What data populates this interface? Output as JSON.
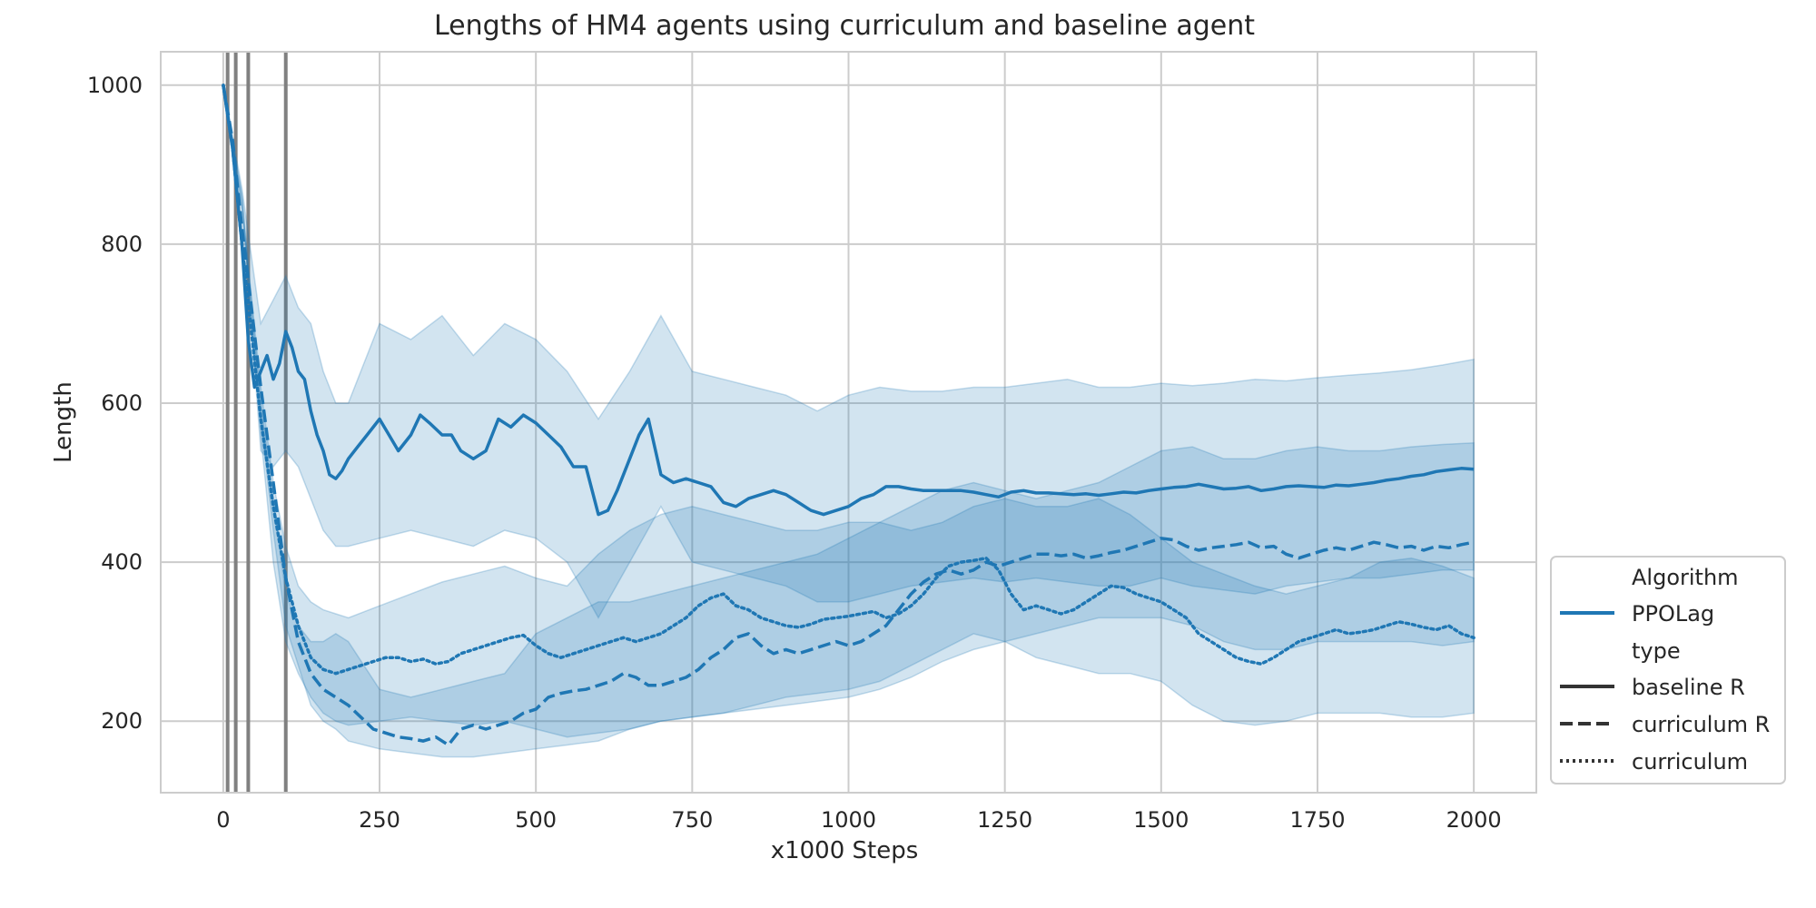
{
  "chart_data": {
    "type": "line",
    "title": "Lengths of HM4 agents using curriculum and baseline agent",
    "xlabel": "x1000 Steps",
    "ylabel": "Length",
    "xlim": [
      -100,
      2100
    ],
    "ylim": [
      110,
      1042
    ],
    "xticks": [
      0,
      250,
      500,
      750,
      1000,
      1250,
      1500,
      1750,
      2000
    ],
    "yticks": [
      200,
      400,
      600,
      800,
      1000
    ],
    "grid": true,
    "vertical_markers": [
      7,
      20,
      40,
      100
    ],
    "colors": {
      "series": "#1f77b4",
      "band": "#1f77b4",
      "marker": "#808080",
      "grid": "#cccccc",
      "legend_sample": "#333333"
    },
    "legend": {
      "placement": "outside-bottom-right",
      "hue_title": "Algorithm",
      "hue_items": [
        "PPOLag"
      ],
      "style_title": "type",
      "style_items": [
        "baseline R",
        "curriculum R",
        "curriculum"
      ]
    },
    "series": [
      {
        "name": "baseline R",
        "algorithm": "PPOLag",
        "dash": "solid",
        "x": [
          0,
          15,
          30,
          40,
          50,
          60,
          70,
          80,
          90,
          100,
          110,
          120,
          130,
          140,
          150,
          160,
          170,
          180,
          190,
          200,
          215,
          230,
          250,
          265,
          280,
          300,
          315,
          330,
          350,
          365,
          380,
          400,
          420,
          440,
          460,
          480,
          500,
          520,
          540,
          560,
          580,
          600,
          615,
          630,
          650,
          665,
          680,
          690,
          700,
          720,
          740,
          760,
          780,
          800,
          820,
          840,
          860,
          880,
          900,
          920,
          940,
          960,
          980,
          1000,
          1020,
          1040,
          1060,
          1080,
          1100,
          1120,
          1140,
          1160,
          1180,
          1200,
          1220,
          1240,
          1260,
          1280,
          1300,
          1320,
          1340,
          1360,
          1380,
          1400,
          1420,
          1440,
          1460,
          1480,
          1500,
          1520,
          1540,
          1560,
          1580,
          1600,
          1620,
          1640,
          1660,
          1680,
          1700,
          1720,
          1740,
          1760,
          1780,
          1800,
          1820,
          1840,
          1860,
          1880,
          1900,
          1920,
          1940,
          1960,
          1980,
          2000
        ],
        "y": [
          1000,
          920,
          800,
          680,
          620,
          640,
          660,
          630,
          650,
          690,
          670,
          640,
          630,
          590,
          560,
          540,
          510,
          505,
          515,
          530,
          545,
          560,
          580,
          560,
          540,
          560,
          585,
          575,
          560,
          560,
          540,
          530,
          540,
          580,
          570,
          585,
          575,
          560,
          545,
          520,
          520,
          460,
          465,
          490,
          530,
          560,
          580,
          545,
          510,
          500,
          505,
          500,
          495,
          475,
          470,
          480,
          485,
          490,
          485,
          475,
          465,
          460,
          465,
          470,
          480,
          485,
          495,
          495,
          492,
          490,
          490,
          490,
          490,
          488,
          485,
          482,
          488,
          490,
          487,
          487,
          486,
          485,
          486,
          484,
          486,
          488,
          487,
          490,
          492,
          494,
          495,
          498,
          495,
          492,
          493,
          495,
          490,
          492,
          495,
          496,
          495,
          494,
          497,
          496,
          498,
          500,
          503,
          505,
          508,
          510,
          514,
          516,
          518,
          517
        ]
      },
      {
        "name": "curriculum R",
        "algorithm": "PPOLag",
        "dash": "dashed",
        "x": [
          0,
          15,
          30,
          45,
          60,
          80,
          100,
          120,
          140,
          160,
          180,
          200,
          220,
          240,
          260,
          280,
          300,
          320,
          340,
          360,
          380,
          400,
          420,
          440,
          460,
          480,
          500,
          520,
          540,
          560,
          580,
          600,
          620,
          640,
          660,
          680,
          700,
          720,
          740,
          760,
          780,
          800,
          820,
          840,
          860,
          880,
          900,
          920,
          940,
          960,
          980,
          1000,
          1020,
          1040,
          1060,
          1080,
          1100,
          1120,
          1140,
          1160,
          1180,
          1200,
          1220,
          1240,
          1260,
          1280,
          1300,
          1320,
          1340,
          1360,
          1380,
          1400,
          1420,
          1440,
          1460,
          1480,
          1500,
          1520,
          1540,
          1560,
          1580,
          1600,
          1620,
          1640,
          1660,
          1680,
          1700,
          1720,
          1740,
          1760,
          1780,
          1800,
          1820,
          1840,
          1860,
          1880,
          1900,
          1920,
          1940,
          1960,
          1980,
          2000
        ],
        "y": [
          1000,
          930,
          820,
          720,
          620,
          500,
          380,
          300,
          260,
          240,
          230,
          220,
          205,
          190,
          185,
          180,
          178,
          175,
          180,
          170,
          190,
          195,
          190,
          195,
          200,
          210,
          215,
          230,
          235,
          238,
          240,
          245,
          250,
          260,
          255,
          245,
          245,
          250,
          255,
          265,
          280,
          290,
          305,
          310,
          295,
          285,
          290,
          285,
          290,
          295,
          300,
          295,
          300,
          310,
          320,
          340,
          360,
          375,
          385,
          390,
          385,
          390,
          400,
          395,
          400,
          405,
          410,
          410,
          408,
          410,
          405,
          408,
          412,
          415,
          420,
          425,
          430,
          428,
          420,
          415,
          418,
          420,
          422,
          425,
          418,
          420,
          410,
          405,
          410,
          415,
          418,
          415,
          420,
          425,
          422,
          418,
          420,
          415,
          420,
          418,
          422,
          425
        ]
      },
      {
        "name": "curriculum",
        "algorithm": "PPOLag",
        "dash": "dotted",
        "x": [
          0,
          15,
          30,
          45,
          60,
          80,
          100,
          120,
          140,
          160,
          180,
          200,
          220,
          240,
          260,
          280,
          300,
          320,
          340,
          360,
          380,
          400,
          420,
          440,
          460,
          480,
          500,
          520,
          540,
          560,
          580,
          600,
          620,
          640,
          660,
          680,
          700,
          720,
          740,
          760,
          780,
          800,
          820,
          840,
          860,
          880,
          900,
          920,
          940,
          960,
          980,
          1000,
          1020,
          1040,
          1060,
          1080,
          1100,
          1120,
          1140,
          1160,
          1180,
          1200,
          1220,
          1240,
          1260,
          1280,
          1300,
          1320,
          1340,
          1360,
          1380,
          1400,
          1420,
          1440,
          1460,
          1480,
          1500,
          1520,
          1540,
          1560,
          1580,
          1600,
          1620,
          1640,
          1660,
          1680,
          1700,
          1720,
          1740,
          1760,
          1780,
          1800,
          1820,
          1840,
          1860,
          1880,
          1900,
          1920,
          1940,
          1960,
          1980,
          2000
        ],
        "y": [
          1000,
          920,
          800,
          690,
          580,
          470,
          380,
          320,
          280,
          265,
          260,
          265,
          270,
          275,
          280,
          280,
          275,
          278,
          272,
          275,
          285,
          290,
          295,
          300,
          305,
          308,
          295,
          285,
          280,
          285,
          290,
          295,
          300,
          305,
          300,
          305,
          310,
          320,
          330,
          345,
          355,
          360,
          345,
          340,
          330,
          325,
          320,
          318,
          322,
          328,
          330,
          332,
          335,
          338,
          330,
          335,
          345,
          360,
          380,
          395,
          400,
          402,
          405,
          390,
          360,
          340,
          345,
          340,
          335,
          340,
          350,
          360,
          370,
          368,
          360,
          355,
          350,
          340,
          330,
          310,
          300,
          290,
          280,
          275,
          272,
          280,
          290,
          300,
          305,
          310,
          315,
          310,
          312,
          315,
          320,
          325,
          322,
          318,
          315,
          320,
          310,
          305
        ]
      }
    ],
    "bands": [
      {
        "series": "baseline R",
        "x": [
          0,
          30,
          60,
          80,
          100,
          120,
          140,
          160,
          180,
          200,
          250,
          300,
          350,
          400,
          450,
          500,
          550,
          600,
          650,
          700,
          750,
          800,
          850,
          900,
          950,
          1000,
          1050,
          1100,
          1150,
          1200,
          1250,
          1300,
          1350,
          1400,
          1450,
          1500,
          1550,
          1600,
          1650,
          1700,
          1750,
          1800,
          1850,
          1900,
          1950,
          2000
        ],
        "upper": [
          1000,
          870,
          700,
          730,
          760,
          720,
          700,
          640,
          600,
          600,
          700,
          680,
          710,
          660,
          700,
          680,
          640,
          580,
          640,
          710,
          640,
          630,
          620,
          610,
          590,
          610,
          620,
          615,
          615,
          620,
          620,
          625,
          630,
          620,
          620,
          625,
          622,
          625,
          630,
          628,
          632,
          635,
          638,
          642,
          648,
          655
        ],
        "lower": [
          1000,
          860,
          540,
          520,
          540,
          520,
          480,
          440,
          420,
          420,
          430,
          440,
          430,
          420,
          440,
          430,
          400,
          330,
          400,
          470,
          400,
          390,
          380,
          370,
          350,
          350,
          360,
          370,
          375,
          380,
          375,
          380,
          375,
          370,
          370,
          380,
          370,
          365,
          360,
          370,
          375,
          380,
          380,
          385,
          390,
          390
        ]
      },
      {
        "series": "curriculum R",
        "x": [
          0,
          30,
          60,
          80,
          100,
          120,
          140,
          160,
          180,
          200,
          250,
          300,
          350,
          400,
          450,
          500,
          550,
          600,
          650,
          700,
          750,
          800,
          850,
          900,
          950,
          1000,
          1050,
          1100,
          1150,
          1200,
          1250,
          1300,
          1350,
          1400,
          1450,
          1500,
          1550,
          1600,
          1650,
          1700,
          1750,
          1800,
          1850,
          1900,
          1950,
          2000
        ],
        "upper": [
          1000,
          860,
          600,
          480,
          360,
          320,
          300,
          300,
          310,
          300,
          240,
          230,
          240,
          250,
          260,
          310,
          330,
          350,
          350,
          360,
          370,
          380,
          390,
          400,
          410,
          430,
          450,
          470,
          490,
          500,
          490,
          480,
          490,
          500,
          520,
          540,
          545,
          530,
          530,
          540,
          545,
          540,
          540,
          545,
          548,
          550
        ],
        "lower": [
          1000,
          850,
          580,
          440,
          320,
          270,
          220,
          200,
          190,
          175,
          165,
          160,
          155,
          155,
          160,
          165,
          170,
          175,
          190,
          200,
          205,
          210,
          215,
          220,
          225,
          230,
          240,
          255,
          275,
          290,
          300,
          310,
          320,
          330,
          330,
          330,
          320,
          300,
          290,
          290,
          300,
          300,
          300,
          300,
          295,
          300
        ]
      },
      {
        "series": "curriculum",
        "x": [
          0,
          30,
          60,
          80,
          100,
          120,
          140,
          160,
          180,
          200,
          250,
          300,
          350,
          400,
          450,
          500,
          550,
          600,
          650,
          700,
          750,
          800,
          850,
          900,
          950,
          1000,
          1050,
          1100,
          1150,
          1200,
          1250,
          1300,
          1350,
          1400,
          1450,
          1500,
          1550,
          1600,
          1650,
          1700,
          1750,
          1800,
          1850,
          1900,
          1950,
          2000
        ],
        "upper": [
          1000,
          850,
          620,
          500,
          420,
          370,
          350,
          340,
          335,
          330,
          345,
          360,
          375,
          385,
          395,
          380,
          370,
          410,
          440,
          460,
          470,
          460,
          450,
          440,
          440,
          450,
          450,
          440,
          450,
          470,
          480,
          470,
          470,
          480,
          460,
          430,
          400,
          385,
          370,
          360,
          370,
          380,
          400,
          405,
          395,
          380
        ],
        "lower": [
          1000,
          840,
          560,
          400,
          300,
          260,
          230,
          210,
          200,
          195,
          200,
          205,
          200,
          195,
          200,
          190,
          180,
          185,
          190,
          200,
          205,
          210,
          220,
          230,
          235,
          240,
          250,
          270,
          290,
          310,
          300,
          280,
          270,
          260,
          260,
          250,
          220,
          200,
          195,
          200,
          210,
          210,
          210,
          205,
          205,
          210
        ]
      }
    ]
  }
}
